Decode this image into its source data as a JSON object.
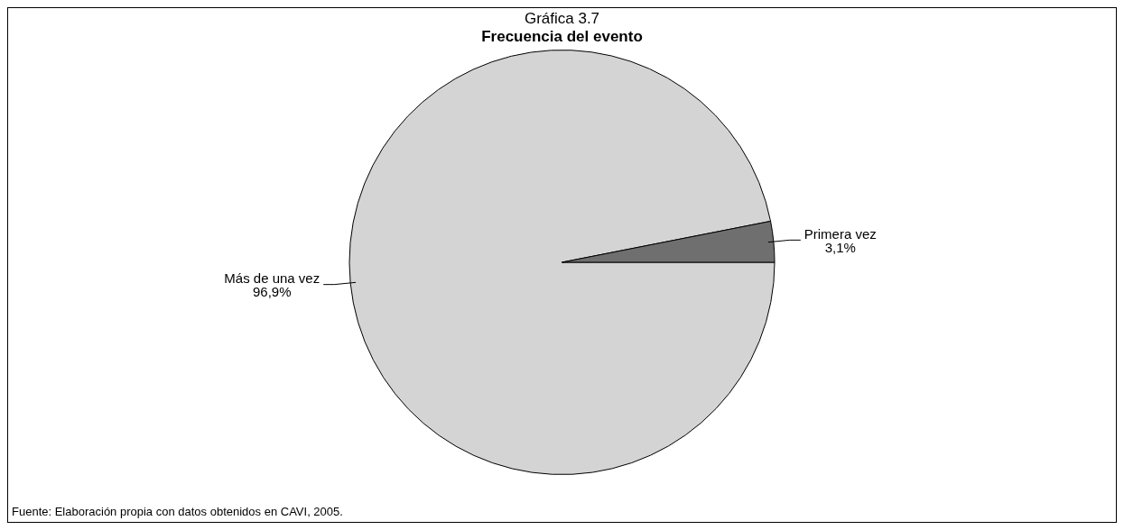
{
  "chart_data": {
    "type": "pie",
    "title": "Gráfica 3.7",
    "subtitle": "Frecuencia del evento",
    "categories": [
      "Más de una vez",
      "Primera vez"
    ],
    "values": [
      96.9,
      3.1
    ],
    "value_labels": [
      "96,9%",
      "3,1%"
    ],
    "colors": [
      "#d4d4d4",
      "#6f6f6f"
    ],
    "legend": false,
    "annotations": [
      "Fuente: Elaboración propia con datos obtenidos en CAVI, 2005."
    ]
  }
}
